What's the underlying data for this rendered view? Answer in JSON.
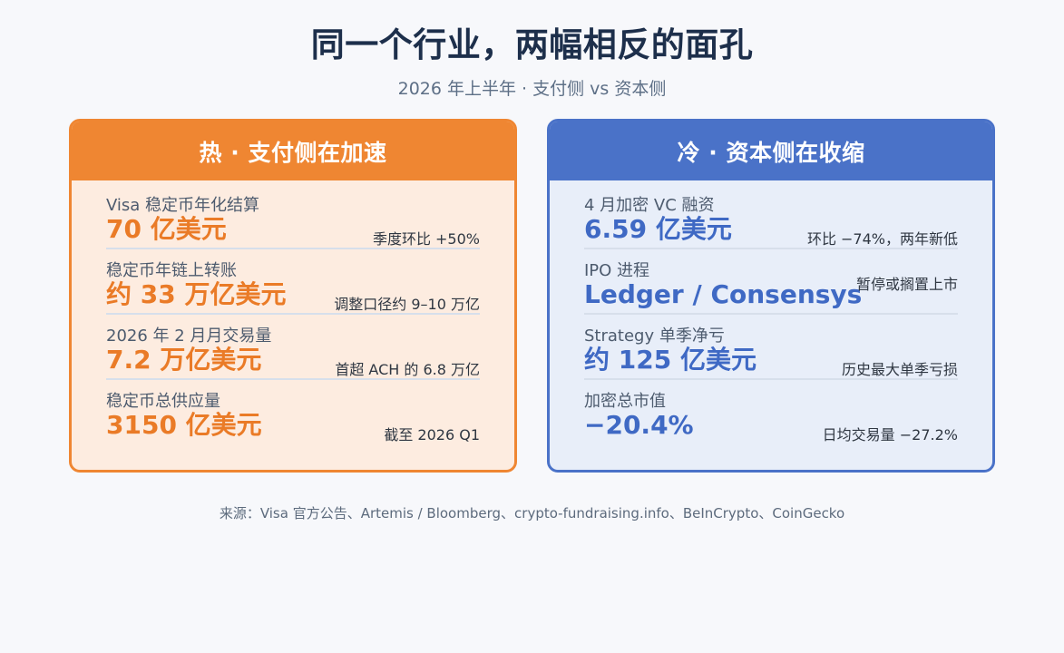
{
  "page": {
    "title": "同一个行业，两幅相反的面孔",
    "subtitle": "2026 年上半年 · 支付侧 vs 资本侧",
    "footer": "来源：Visa 官方公告、Artemis / Bloomberg、crypto-fundraising.info、BeInCrypto、CoinGecko"
  },
  "hot": {
    "header": "热 · 支付侧在加速",
    "accent": "#ef8632",
    "items": [
      {
        "label": "Visa 稳定币年化结算",
        "value": "70 亿美元",
        "note": "季度环比 +50%"
      },
      {
        "label": "稳定币年链上转账",
        "value": "约 33 万亿美元",
        "note": "调整口径约 9–10 万亿"
      },
      {
        "label": "2026 年 2 月月交易量",
        "value": "7.2 万亿美元",
        "note": "首超 ACH 的 6.8 万亿"
      },
      {
        "label": "稳定币总供应量",
        "value": "3150 亿美元",
        "note": "截至 2026 Q1"
      }
    ]
  },
  "cold": {
    "header": "冷 · 资本侧在收缩",
    "accent": "#4a72c8",
    "items": [
      {
        "label": "4 月加密 VC 融资",
        "value": "6.59 亿美元",
        "note": "环比 −74%，两年新低"
      },
      {
        "label": "IPO 进程",
        "value": "Ledger / Consensys",
        "note": "暂停或搁置上市"
      },
      {
        "label": "Strategy 单季净亏",
        "value": "约 125 亿美元",
        "note": "历史最大单季亏损"
      },
      {
        "label": "加密总市值",
        "value": "−20.4%",
        "note": "日均交易量 −27.2%"
      }
    ]
  }
}
